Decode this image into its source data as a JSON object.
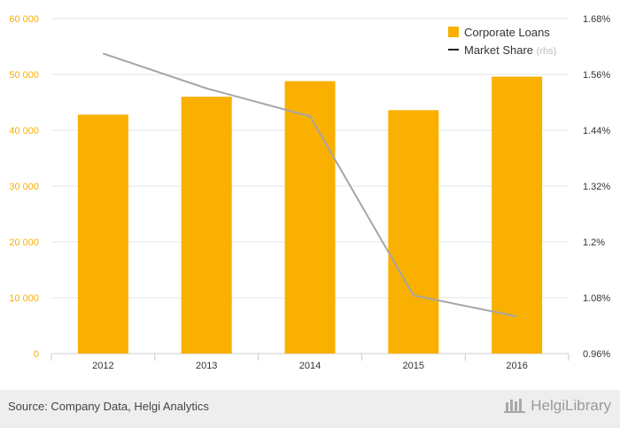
{
  "chart_data": {
    "type": "bar",
    "categories": [
      "2012",
      "2013",
      "2014",
      "2015",
      "2016"
    ],
    "series": [
      {
        "name": "Corporate Loans",
        "type": "bar",
        "axis": "left",
        "color": "#f9b000",
        "values": [
          42800,
          46000,
          48800,
          43600,
          49600
        ]
      },
      {
        "name": "Market Share",
        "name_suffix": "(rhs)",
        "type": "line",
        "axis": "right",
        "color": "#a6a6a6",
        "values": [
          1.605,
          1.53,
          1.47,
          1.085,
          1.04
        ]
      }
    ],
    "y_left": {
      "min": 0,
      "max": 60000,
      "ticks": [
        "0",
        "10 000",
        "20 000",
        "30 000",
        "40 000",
        "50 000",
        "60 000"
      ],
      "color": "#f9b000"
    },
    "y_right": {
      "min": 0.96,
      "max": 1.68,
      "ticks": [
        "0.96%",
        "1.08%",
        "1.2%",
        "1.32%",
        "1.44%",
        "1.56%",
        "1.68%"
      ]
    },
    "grid": true,
    "legend_position": "top-right"
  },
  "footer": {
    "source": "Source: Company Data, Helgi Analytics",
    "brand": "HelgiLibrary"
  }
}
